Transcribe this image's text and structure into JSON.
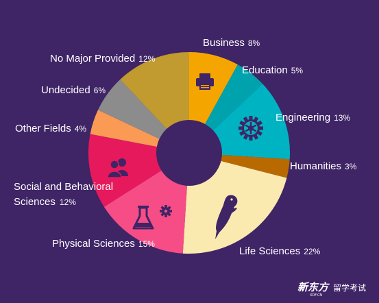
{
  "chart_data": {
    "type": "pie",
    "style": "donut",
    "start_angle_deg": 0,
    "direction": "clockwise",
    "slices": [
      {
        "name": "Business",
        "value": 8,
        "label": "8%",
        "color": "#f5a500",
        "icon": "printer-icon"
      },
      {
        "name": "Education",
        "value": 5,
        "label": "5%",
        "color": "#00a3ad",
        "icon": ""
      },
      {
        "name": "Engineering",
        "value": 13,
        "label": "13%",
        "color": "#00b3c2",
        "icon": "gear-icon"
      },
      {
        "name": "Humanities",
        "value": 3,
        "label": "3%",
        "color": "#b86a00",
        "icon": ""
      },
      {
        "name": "Life Sciences",
        "value": 22,
        "label": "22%",
        "color": "#faeab0",
        "icon": "parrot-icon"
      },
      {
        "name": "Physical Sciences",
        "value": 15,
        "label": "15%",
        "color": "#f64d86",
        "icon": "flask-icon"
      },
      {
        "name": "Social and Behavioral Sciences",
        "name_lines": [
          "Social and Behavioral",
          "Sciences"
        ],
        "value": 12,
        "label": "12%",
        "color": "#e5195c",
        "icon": "people-icon"
      },
      {
        "name": "Other Fields",
        "value": 4,
        "label": "4%",
        "color": "#fb9a55",
        "icon": ""
      },
      {
        "name": "Undecided",
        "value": 6,
        "label": "6%",
        "color": "#8c8c8c",
        "icon": ""
      },
      {
        "name": "No Major Provided",
        "value": 12,
        "label": "12%",
        "color": "#c19a30",
        "icon": ""
      }
    ]
  },
  "watermark": {
    "logo": "新东方",
    "logo_sub": "XDF.CN",
    "text": "留学考试"
  }
}
